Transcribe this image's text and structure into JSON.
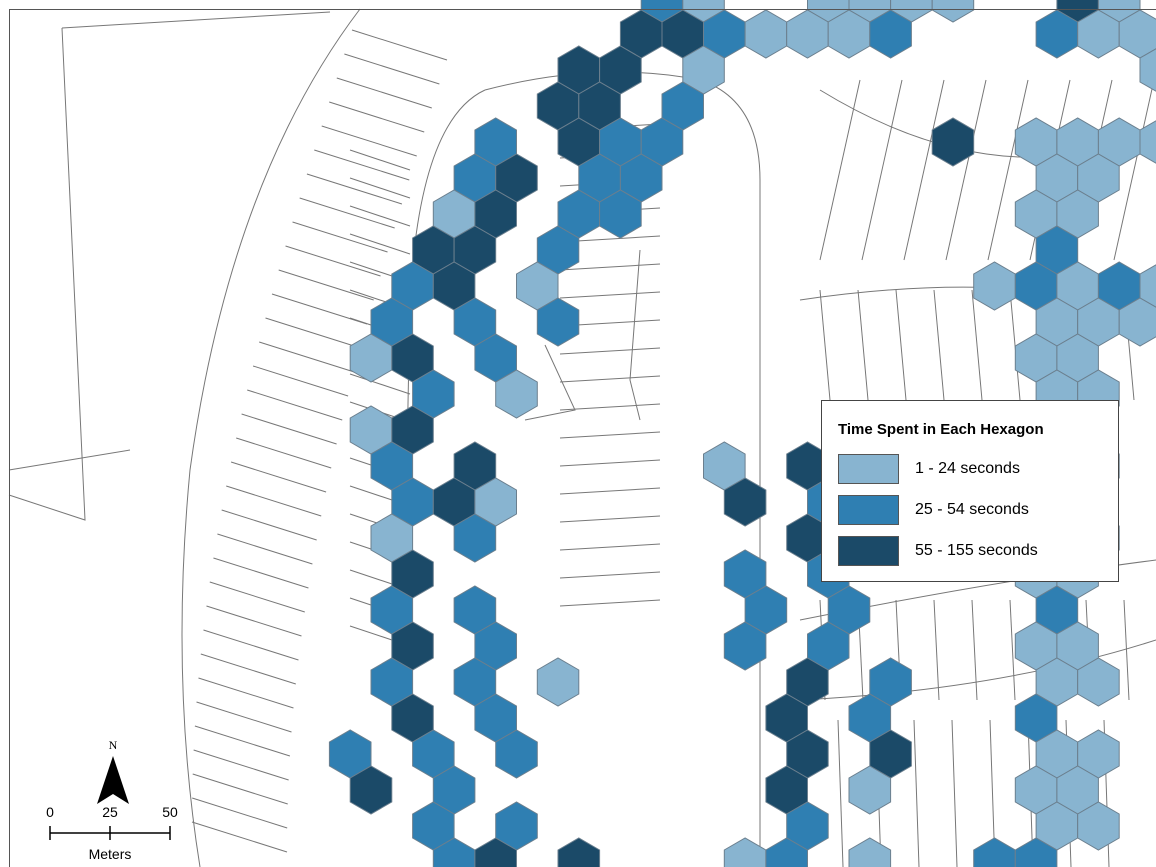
{
  "colors": {
    "low": "#88b4d0",
    "mid": "#2f7fb2",
    "high": "#1b4a68",
    "parcel_stroke": "#777777",
    "hex_stroke": "#6b7f8e"
  },
  "legend": {
    "title": "Time Spent in Each Hexagon",
    "items": [
      {
        "label": "1 - 24 seconds",
        "color": "#88b4d0"
      },
      {
        "label": "25 - 54 seconds",
        "color": "#2f7fb2"
      },
      {
        "label": "55 - 155 seconds",
        "color": "#1b4a68"
      }
    ]
  },
  "north_arrow": {
    "label": "N",
    "icon": "north-arrow-icon"
  },
  "scale_bar": {
    "ticks": [
      "0",
      "25",
      "50"
    ],
    "unit": "Meters"
  },
  "hex_classes": {
    "1": "low",
    "2": "mid",
    "3": "high"
  }
}
